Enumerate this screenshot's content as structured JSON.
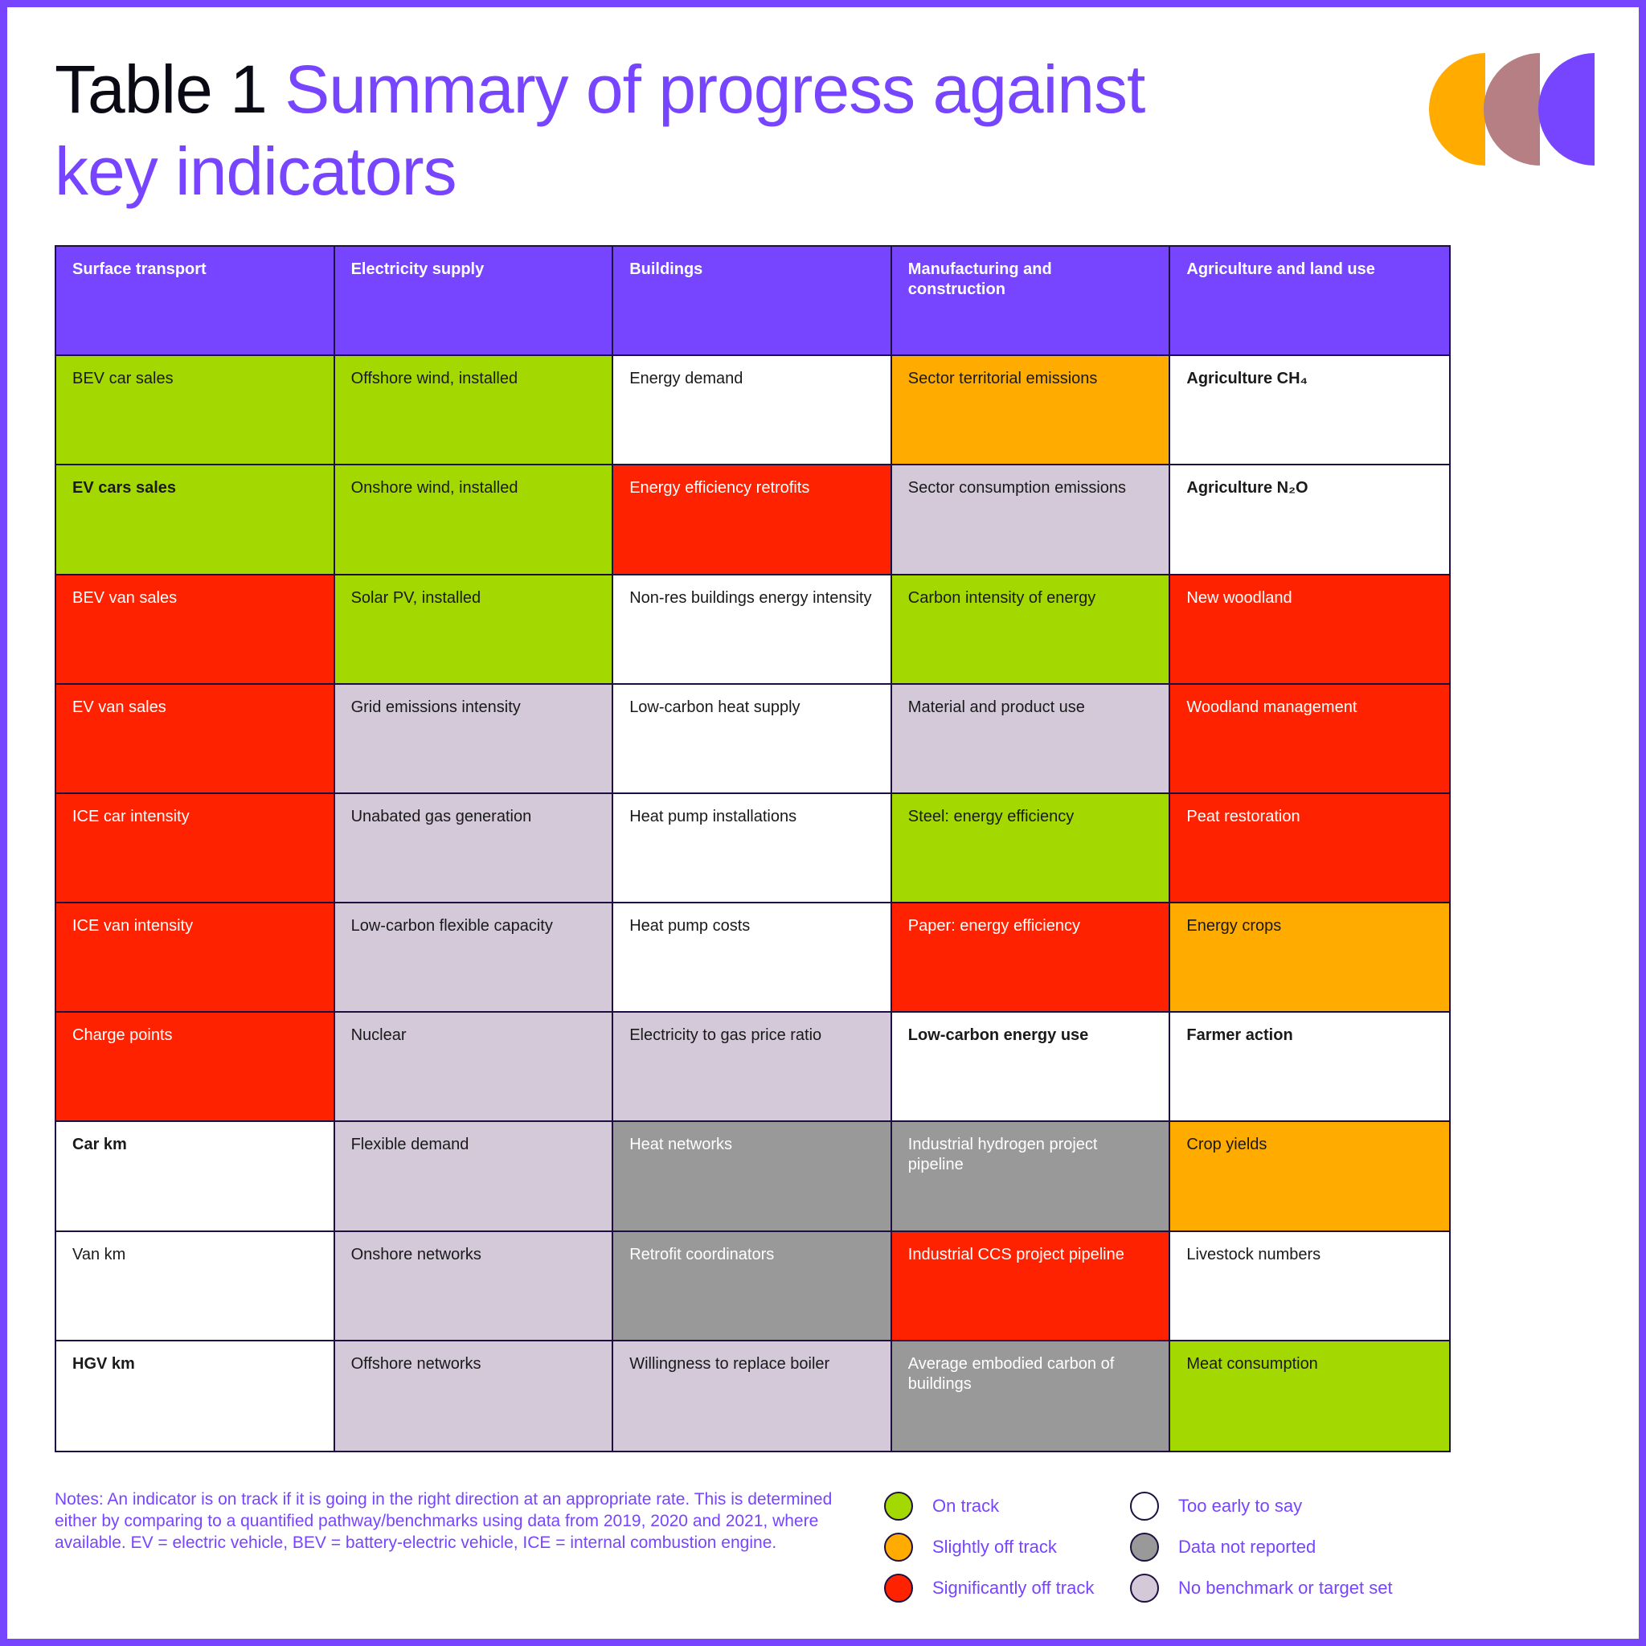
{
  "title": {
    "number": "Table 1",
    "text": "Summary of progress against key indicators"
  },
  "colors": {
    "accent": "#7744ff",
    "header_bg": "#7744ff",
    "on_track": "#a3d900",
    "slightly_off_track": "#ffab00",
    "significantly_off_track": "#ff2200",
    "too_early": "#ffffff",
    "data_not_reported": "#999999",
    "no_benchmark": "#d3c9d9"
  },
  "status_styles": {
    "on_track": {
      "bg": "#a3d900",
      "fg": "#1a1a1a"
    },
    "slightly_off_track": {
      "bg": "#ffab00",
      "fg": "#1a1a1a"
    },
    "significantly_off_track": {
      "bg": "#ff2200",
      "fg": "#ffffff"
    },
    "too_early": {
      "bg": "#ffffff",
      "fg": "#1a1a1a"
    },
    "data_not_reported": {
      "bg": "#999999",
      "fg": "#ffffff"
    },
    "no_benchmark": {
      "bg": "#d3c9d9",
      "fg": "#1a1a1a"
    }
  },
  "table": {
    "columns": [
      "Surface transport",
      "Electricity supply",
      "Buildings",
      "Manufacturing and construction",
      "Agriculture and land use"
    ],
    "rows": [
      [
        {
          "label": "BEV car sales",
          "status": "on_track"
        },
        {
          "label": "Offshore wind, installed",
          "status": "on_track"
        },
        {
          "label": "Energy demand",
          "status": "too_early"
        },
        {
          "label": "Sector territorial emissions",
          "status": "slightly_off_track"
        },
        {
          "label": "Agriculture CH₄",
          "status": "too_early",
          "bold": true
        }
      ],
      [
        {
          "label": "EV cars sales",
          "status": "on_track",
          "bold": true
        },
        {
          "label": "Onshore wind, installed",
          "status": "on_track"
        },
        {
          "label": "Energy efficiency retrofits",
          "status": "significantly_off_track"
        },
        {
          "label": "Sector consumption emissions",
          "status": "no_benchmark"
        },
        {
          "label": "Agriculture N₂O",
          "status": "too_early",
          "bold": true
        }
      ],
      [
        {
          "label": "BEV van sales",
          "status": "significantly_off_track"
        },
        {
          "label": "Solar PV, installed",
          "status": "on_track"
        },
        {
          "label": "Non-res buildings energy intensity",
          "status": "too_early"
        },
        {
          "label": "Carbon intensity of energy",
          "status": "on_track"
        },
        {
          "label": "New woodland",
          "status": "significantly_off_track"
        }
      ],
      [
        {
          "label": "EV van sales",
          "status": "significantly_off_track"
        },
        {
          "label": "Grid emissions intensity",
          "status": "no_benchmark"
        },
        {
          "label": "Low-carbon heat supply",
          "status": "too_early"
        },
        {
          "label": "Material and product use",
          "status": "no_benchmark"
        },
        {
          "label": "Woodland management",
          "status": "significantly_off_track"
        }
      ],
      [
        {
          "label": "ICE car intensity",
          "status": "significantly_off_track"
        },
        {
          "label": "Unabated gas generation",
          "status": "no_benchmark"
        },
        {
          "label": "Heat pump installations",
          "status": "too_early"
        },
        {
          "label": "Steel: energy efficiency",
          "status": "on_track"
        },
        {
          "label": "Peat restoration",
          "status": "significantly_off_track"
        }
      ],
      [
        {
          "label": "ICE van intensity",
          "status": "significantly_off_track"
        },
        {
          "label": "Low-carbon flexible capacity",
          "status": "no_benchmark"
        },
        {
          "label": "Heat pump costs",
          "status": "too_early"
        },
        {
          "label": "Paper: energy efficiency",
          "status": "significantly_off_track"
        },
        {
          "label": "Energy crops",
          "status": "slightly_off_track"
        }
      ],
      [
        {
          "label": "Charge points",
          "status": "significantly_off_track"
        },
        {
          "label": "Nuclear",
          "status": "no_benchmark"
        },
        {
          "label": "Electricity to gas price ratio",
          "status": "no_benchmark"
        },
        {
          "label": "Low-carbon energy use",
          "status": "too_early",
          "bold": true
        },
        {
          "label": "Farmer action",
          "status": "too_early",
          "bold": true
        }
      ],
      [
        {
          "label": "Car km",
          "status": "too_early",
          "bold": true
        },
        {
          "label": "Flexible demand",
          "status": "no_benchmark"
        },
        {
          "label": "Heat networks",
          "status": "data_not_reported"
        },
        {
          "label": "Industrial hydrogen project pipeline",
          "status": "data_not_reported"
        },
        {
          "label": "Crop yields",
          "status": "slightly_off_track"
        }
      ],
      [
        {
          "label": "Van km",
          "status": "too_early"
        },
        {
          "label": "Onshore networks",
          "status": "no_benchmark"
        },
        {
          "label": "Retrofit coordinators",
          "status": "data_not_reported"
        },
        {
          "label": "Industrial CCS project pipeline",
          "status": "significantly_off_track"
        },
        {
          "label": "Livestock numbers",
          "status": "too_early"
        }
      ],
      [
        {
          "label": "HGV km",
          "status": "too_early",
          "bold": true
        },
        {
          "label": "Offshore networks",
          "status": "no_benchmark"
        },
        {
          "label": "Willingness to replace boiler",
          "status": "no_benchmark"
        },
        {
          "label": "Average embodied carbon of buildings",
          "status": "data_not_reported"
        },
        {
          "label": "Meat consumption",
          "status": "on_track"
        }
      ]
    ]
  },
  "notes": "Notes: An indicator is on track if it is going in the right direction at an appropriate rate. This is determined either by comparing to a quantified pathway/benchmarks using data from 2019, 2020 and 2021, where available. EV = electric vehicle, BEV = battery-electric vehicle, ICE = internal combustion engine.",
  "legend": [
    {
      "label": "On track",
      "status": "on_track"
    },
    {
      "label": "Slightly off track",
      "status": "slightly_off_track"
    },
    {
      "label": "Significantly off track",
      "status": "significantly_off_track"
    },
    {
      "label": "Too early to say",
      "status": "too_early"
    },
    {
      "label": "Data not reported",
      "status": "data_not_reported"
    },
    {
      "label": "No benchmark or target set",
      "status": "no_benchmark"
    }
  ],
  "logo": {
    "name": "brand-logo-icon",
    "colors": [
      "#ffab00",
      "#b57f84",
      "#7744ff"
    ]
  }
}
